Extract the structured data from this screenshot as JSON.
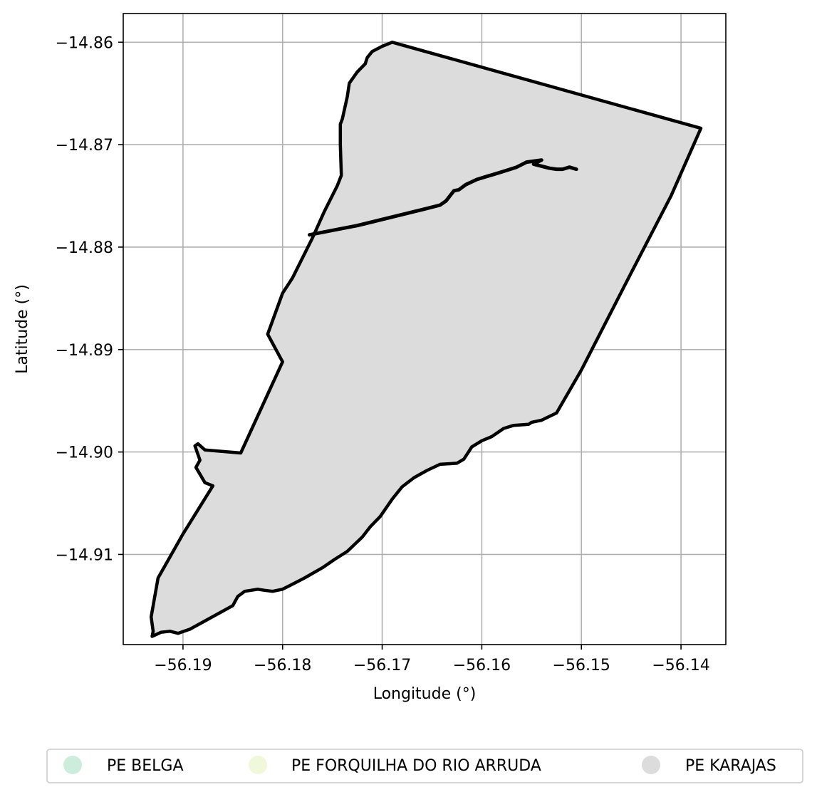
{
  "chart_data": {
    "type": "map",
    "title": "",
    "xlabel": "Longitude (°)",
    "ylabel": "Latitude (°)",
    "xlim": [
      -56.196,
      -56.1355
    ],
    "ylim": [
      -14.9188,
      -14.8572
    ],
    "grid": true,
    "x_ticks": [
      -56.19,
      -56.18,
      -56.17,
      -56.16,
      -56.15,
      -56.14
    ],
    "y_ticks": [
      -14.86,
      -14.87,
      -14.88,
      -14.89,
      -14.9,
      -14.91
    ],
    "x_tick_labels": [
      "−56.19",
      "−56.18",
      "−56.17",
      "−56.16",
      "−56.15",
      "−56.14"
    ],
    "y_tick_labels": [
      "−14.86",
      "−14.87",
      "−14.88",
      "−14.89",
      "−14.90",
      "−14.91"
    ],
    "legend_position": "bottom-center",
    "legend": [
      {
        "name": "PE BELGA",
        "color": "#cdeddc"
      },
      {
        "name": "PE FORQUILHA DO RIO ARRUDA",
        "color": "#f0f8dc"
      },
      {
        "name": "PE KARAJAS",
        "color": "#dcdcdc"
      }
    ],
    "regions": [
      {
        "name": "PE FORQUILHA DO RIO ARRUDA",
        "fill": "#f0f8dc",
        "boundary": [
          [
            -56.1532,
            -14.8953
          ],
          [
            -56.1425,
            -14.8775
          ],
          [
            -56.138,
            -14.8684
          ],
          [
            -56.141,
            -14.875
          ],
          [
            -56.1512,
            -14.894
          ]
        ]
      },
      {
        "name": "PE KARAJAS",
        "fill": "#dcdcdc",
        "stroke": "#000000",
        "boundary": [
          [
            -56.169,
            -14.86
          ],
          [
            -56.138,
            -14.8684
          ],
          [
            -56.141,
            -14.875
          ],
          [
            -56.145,
            -14.8825
          ],
          [
            -56.15,
            -14.892
          ],
          [
            -56.1525,
            -14.8962
          ],
          [
            -56.154,
            -14.8969
          ],
          [
            -56.155,
            -14.8971
          ],
          [
            -56.1553,
            -14.8973
          ],
          [
            -56.1568,
            -14.8974
          ],
          [
            -56.1578,
            -14.8977
          ],
          [
            -56.159,
            -14.8985
          ],
          [
            -56.16,
            -14.8989
          ],
          [
            -56.161,
            -14.8995
          ],
          [
            -56.1618,
            -14.9007
          ],
          [
            -56.1625,
            -14.9011
          ],
          [
            -56.1642,
            -14.9012
          ],
          [
            -56.1655,
            -14.9018
          ],
          [
            -56.1668,
            -14.9025
          ],
          [
            -56.168,
            -14.9034
          ],
          [
            -56.169,
            -14.9046
          ],
          [
            -56.1702,
            -14.9063
          ],
          [
            -56.1712,
            -14.9073
          ],
          [
            -56.172,
            -14.9083
          ],
          [
            -56.1735,
            -14.9097
          ],
          [
            -56.1748,
            -14.9105
          ],
          [
            -56.176,
            -14.9113
          ],
          [
            -56.1778,
            -14.9123
          ],
          [
            -56.1792,
            -14.913
          ],
          [
            -56.18,
            -14.9134
          ],
          [
            -56.181,
            -14.9136
          ],
          [
            -56.1818,
            -14.9135
          ],
          [
            -56.1825,
            -14.9134
          ],
          [
            -56.1838,
            -14.9136
          ],
          [
            -56.1845,
            -14.9141
          ],
          [
            -56.185,
            -14.915
          ],
          [
            -56.1865,
            -14.9158
          ],
          [
            -56.188,
            -14.9166
          ],
          [
            -56.1893,
            -14.9173
          ],
          [
            -56.1905,
            -14.9177
          ],
          [
            -56.1913,
            -14.9175
          ],
          [
            -56.1922,
            -14.9176
          ],
          [
            -56.1931,
            -14.918
          ],
          [
            -56.193,
            -14.9175
          ],
          [
            -56.1932,
            -14.9161
          ],
          [
            -56.1925,
            -14.9123
          ],
          [
            -56.19,
            -14.908
          ],
          [
            -56.187,
            -14.9033
          ],
          [
            -56.1878,
            -14.903
          ],
          [
            -56.1887,
            -14.9015
          ],
          [
            -56.1883,
            -14.9008
          ],
          [
            -56.1888,
            -14.8994
          ],
          [
            -56.1885,
            -14.8992
          ],
          [
            -56.1878,
            -14.8998
          ],
          [
            -56.1842,
            -14.9001
          ],
          [
            -56.18,
            -14.8912
          ],
          [
            -56.1815,
            -14.8885
          ],
          [
            -56.18,
            -14.8845
          ],
          [
            -56.179,
            -14.883
          ],
          [
            -56.177,
            -14.8791
          ],
          [
            -56.1758,
            -14.8765
          ],
          [
            -56.1745,
            -14.874
          ],
          [
            -56.1741,
            -14.873
          ],
          [
            -56.1742,
            -14.87
          ],
          [
            -56.1742,
            -14.868
          ],
          [
            -56.174,
            -14.8675
          ],
          [
            -56.1735,
            -14.8653
          ],
          [
            -56.1733,
            -14.864
          ],
          [
            -56.1725,
            -14.8629
          ],
          [
            -56.1717,
            -14.8621
          ],
          [
            -56.1715,
            -14.8615
          ],
          [
            -56.171,
            -14.8609
          ],
          [
            -56.17,
            -14.8604
          ]
        ],
        "inner_line": [
          [
            -56.1773,
            -14.8788
          ],
          [
            -56.1725,
            -14.8779
          ],
          [
            -56.1658,
            -14.8763
          ],
          [
            -56.1642,
            -14.8759
          ],
          [
            -56.1636,
            -14.8755
          ],
          [
            -56.1632,
            -14.875
          ],
          [
            -56.1628,
            -14.8745
          ],
          [
            -56.1623,
            -14.8744
          ],
          [
            -56.1616,
            -14.8739
          ],
          [
            -56.1605,
            -14.8734
          ],
          [
            -56.1595,
            -14.8731
          ],
          [
            -56.1588,
            -14.8729
          ],
          [
            -56.1578,
            -14.8726
          ],
          [
            -56.1565,
            -14.8722
          ],
          [
            -56.1555,
            -14.8717
          ],
          [
            -56.1555,
            -14.8717
          ],
          [
            -56.154,
            -14.8715
          ],
          [
            -56.1548,
            -14.8719
          ],
          [
            -56.154,
            -14.8721
          ],
          [
            -56.1532,
            -14.8723
          ],
          [
            -56.1525,
            -14.8724
          ],
          [
            -56.1519,
            -14.8724
          ],
          [
            -56.1512,
            -14.8722
          ],
          [
            -56.1505,
            -14.8724
          ]
        ]
      }
    ]
  }
}
